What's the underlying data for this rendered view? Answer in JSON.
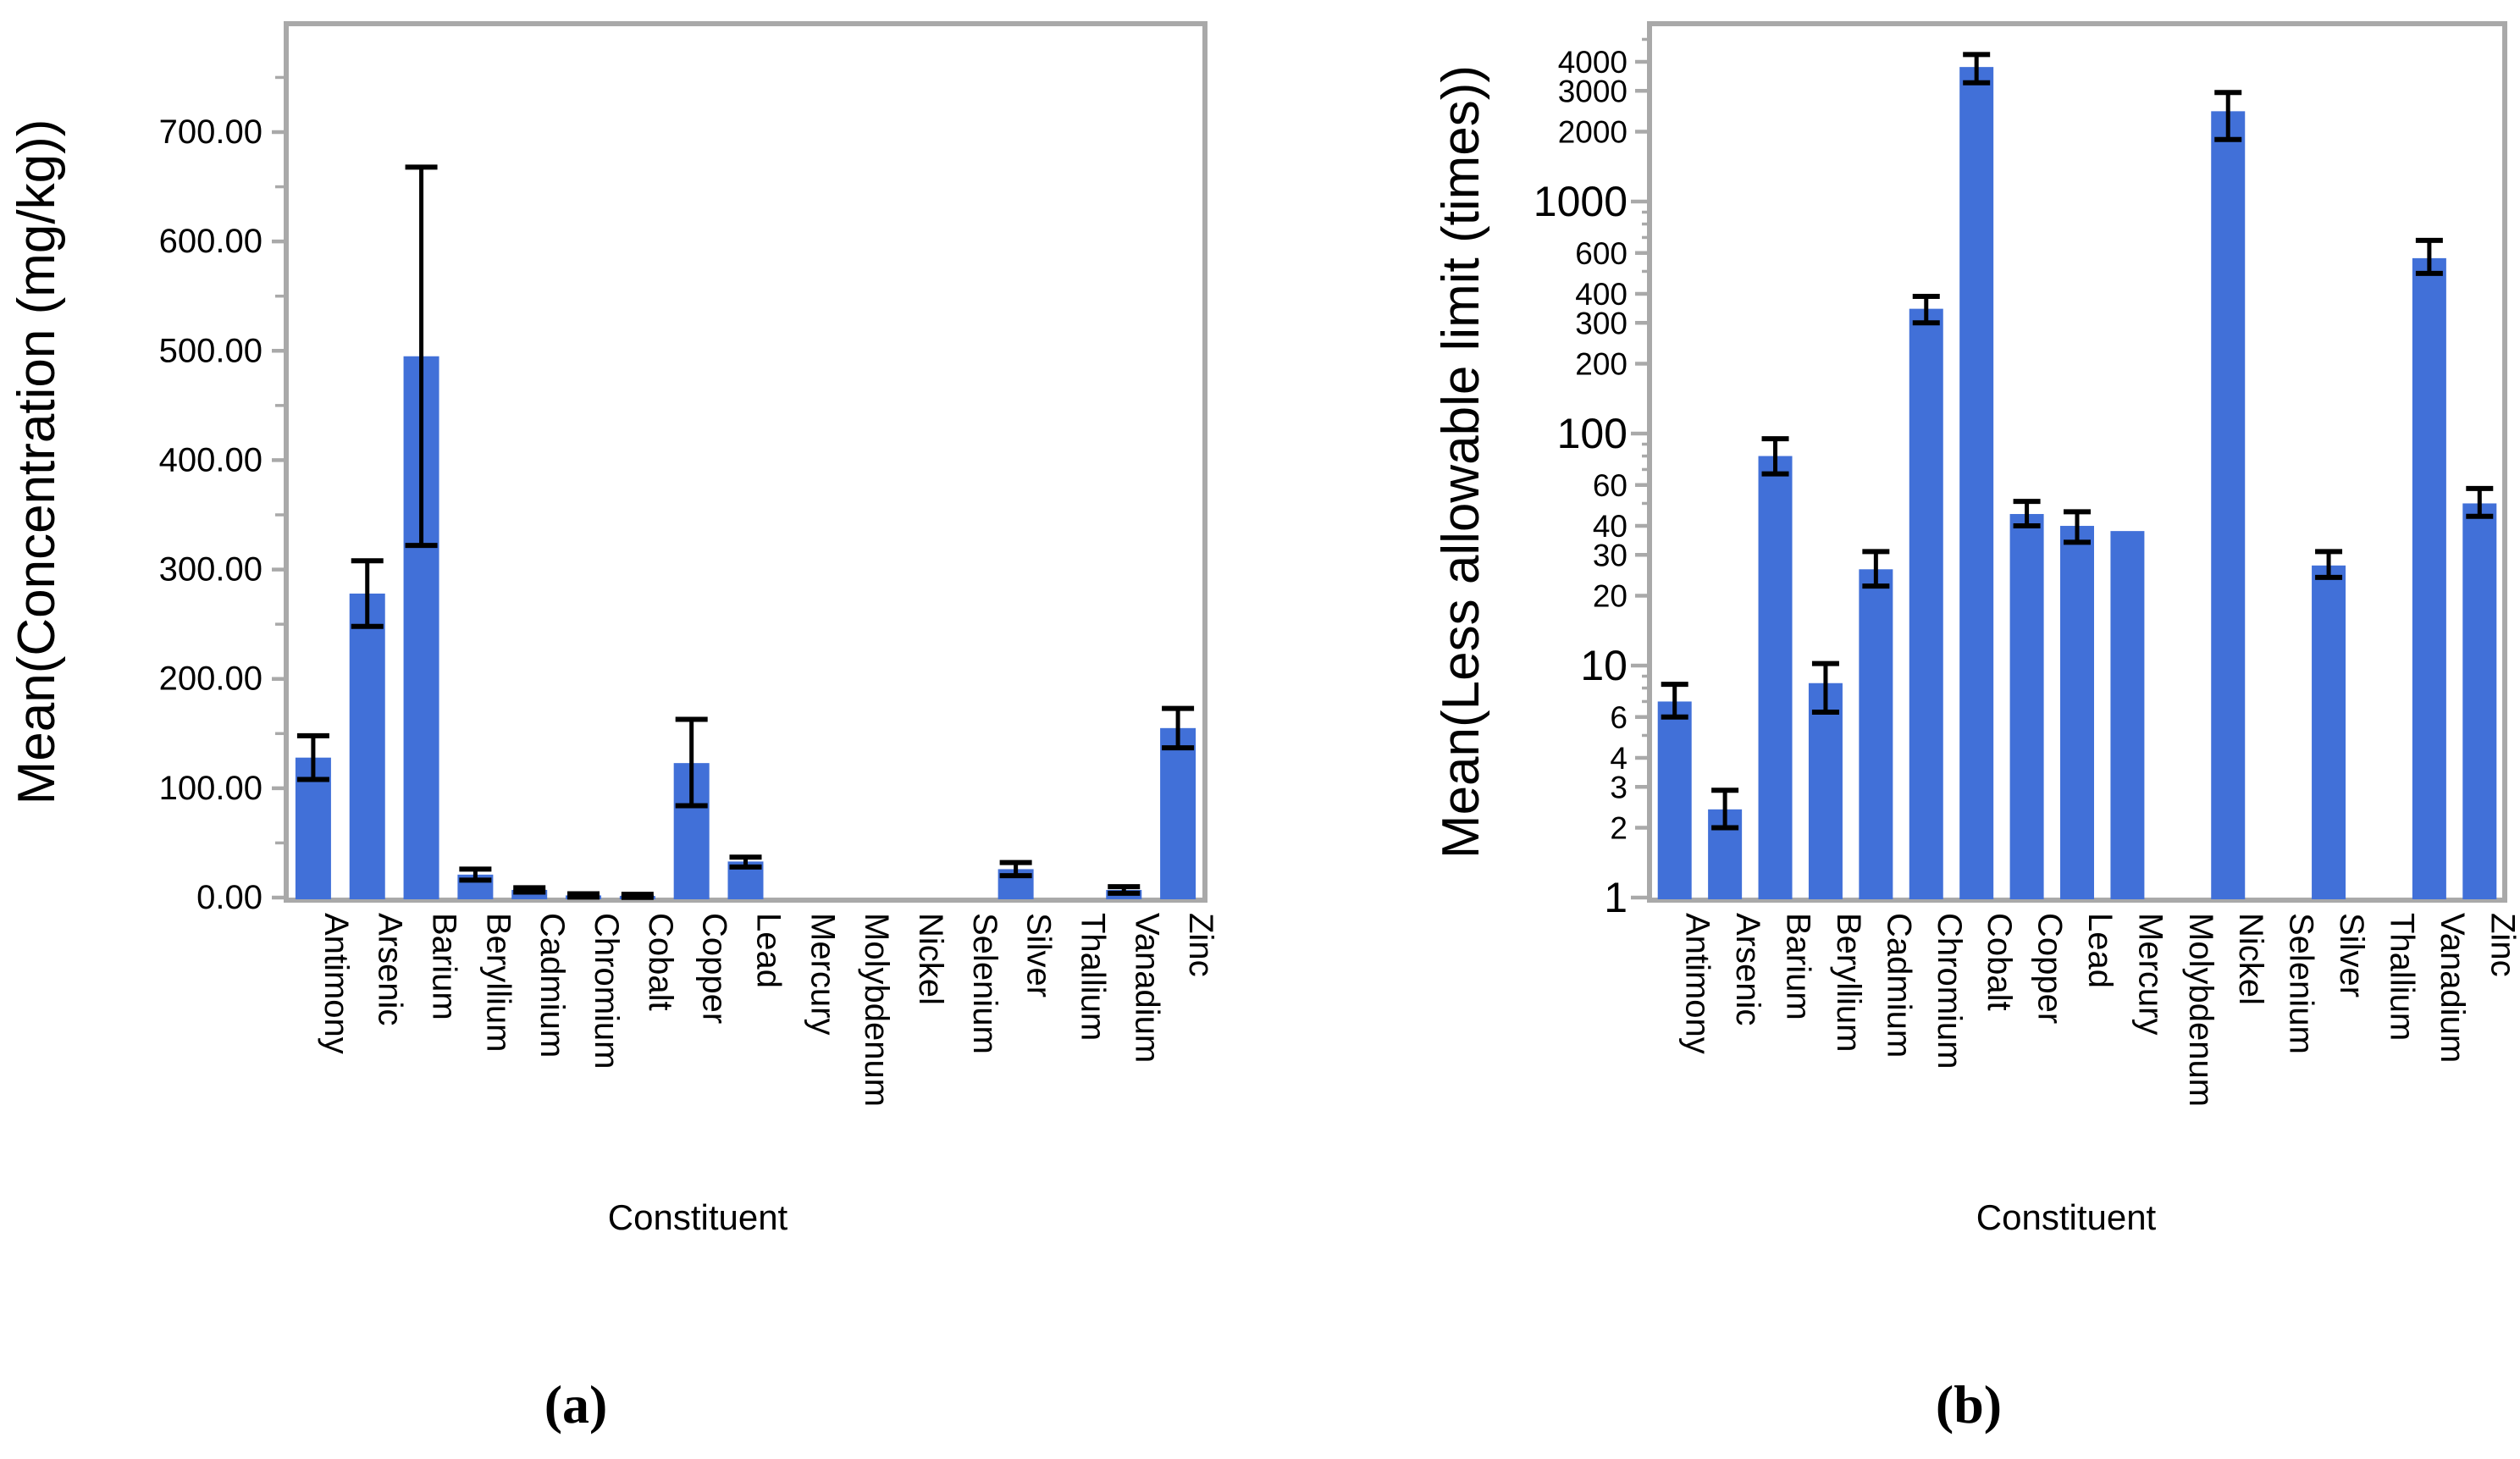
{
  "figure": {
    "background": "#ffffff",
    "bar_color": "#4170D8",
    "axis_color": "#A9A9A9",
    "error_color": "#000000",
    "text_color": "#000000"
  },
  "chart_data": [
    {
      "type": "bar",
      "panel": "a",
      "caption": "(a)",
      "ylabel": "Mean(Concentration (mg/kg))",
      "xlabel": "Constituent",
      "yscale": "linear",
      "ylim": [
        0,
        800
      ],
      "grid": false,
      "legend": "none",
      "yticks": [
        {
          "v": 0,
          "label": "0.00"
        },
        {
          "v": 100,
          "label": "100.00"
        },
        {
          "v": 200,
          "label": "200.00"
        },
        {
          "v": 300,
          "label": "300.00"
        },
        {
          "v": 400,
          "label": "400.00"
        },
        {
          "v": 500,
          "label": "500.00"
        },
        {
          "v": 600,
          "label": "600.00"
        },
        {
          "v": 700,
          "label": "700.00"
        }
      ],
      "yminor": [
        50,
        150,
        250,
        350,
        450,
        550,
        650,
        750
      ],
      "categories": [
        "Antimony",
        "Arsenic",
        "Barium",
        "Beryllium",
        "Cadmium",
        "Chromium",
        "Cobalt",
        "Copper",
        "Lead",
        "Mercury",
        "Molybdenum",
        "Nickel",
        "Selenium",
        "Silver",
        "Thallium",
        "Vanadium",
        "Zinc"
      ],
      "values": [
        128,
        278,
        495,
        21,
        7,
        2,
        1.5,
        123,
        33,
        null,
        null,
        null,
        null,
        26,
        null,
        7,
        155
      ],
      "err_lo": [
        108,
        248,
        322,
        16,
        5,
        0.5,
        0.2,
        84,
        28,
        null,
        null,
        null,
        null,
        20,
        null,
        4,
        137
      ],
      "err_hi": [
        148,
        308,
        668,
        26,
        9,
        3.5,
        3,
        163,
        37,
        null,
        null,
        null,
        null,
        32,
        null,
        10,
        173
      ]
    },
    {
      "type": "bar",
      "panel": "b",
      "caption": "(b)",
      "ylabel": "Mean(Less allowable limit (times))",
      "xlabel": "Constituent",
      "yscale": "log",
      "ylim": [
        1,
        5800
      ],
      "grid": false,
      "legend": "none",
      "yticks": [
        {
          "v": 1,
          "label": "1",
          "major": true
        },
        {
          "v": 2,
          "label": "2"
        },
        {
          "v": 3,
          "label": "3"
        },
        {
          "v": 4,
          "label": "4"
        },
        {
          "v": 6,
          "label": "6"
        },
        {
          "v": 10,
          "label": "10",
          "major": true
        },
        {
          "v": 20,
          "label": "20"
        },
        {
          "v": 30,
          "label": "30"
        },
        {
          "v": 40,
          "label": "40"
        },
        {
          "v": 60,
          "label": "60"
        },
        {
          "v": 100,
          "label": "100",
          "major": true
        },
        {
          "v": 200,
          "label": "200"
        },
        {
          "v": 300,
          "label": "300"
        },
        {
          "v": 400,
          "label": "400"
        },
        {
          "v": 600,
          "label": "600"
        },
        {
          "v": 1000,
          "label": "1000",
          "major": true
        },
        {
          "v": 2000,
          "label": "2000"
        },
        {
          "v": 3000,
          "label": "3000"
        },
        {
          "v": 4000,
          "label": "4000"
        }
      ],
      "yminor": [
        5,
        7,
        8,
        9,
        50,
        70,
        80,
        90,
        500,
        700,
        800,
        900,
        5000
      ],
      "categories": [
        "Antimony",
        "Arsenic",
        "Barium",
        "Beryllium",
        "Cadmium",
        "Chromium",
        "Cobalt",
        "Copper",
        "Lead",
        "Mercury",
        "Molybdenum",
        "Nickel",
        "Selenium",
        "Silver",
        "Thallium",
        "Vanadium",
        "Zinc"
      ],
      "values": [
        7,
        2.4,
        80,
        8.4,
        26,
        345,
        3800,
        45,
        40,
        38,
        null,
        2450,
        null,
        27,
        null,
        570,
        50
      ],
      "err_lo": [
        6,
        2.0,
        67,
        6.3,
        22,
        300,
        3250,
        40,
        34,
        null,
        null,
        1850,
        null,
        24,
        null,
        490,
        44
      ],
      "err_hi": [
        8.3,
        2.9,
        95,
        10.2,
        31,
        390,
        4300,
        51,
        46,
        null,
        null,
        2950,
        null,
        31,
        null,
        680,
        58
      ]
    }
  ]
}
